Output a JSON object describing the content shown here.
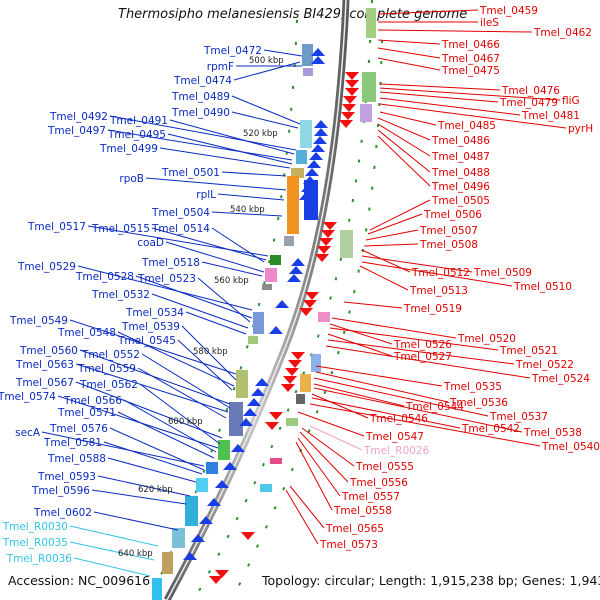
{
  "title": "Thermosipho melanesiensis BI429, complete genome",
  "footer": {
    "accession": "Accession: NC_009616",
    "topology": "Topology: circular; Length: 1,915,238 bp; Genes: 1,943"
  },
  "colors": {
    "forward_label": "#0a2bc0",
    "reverse_label": "#e00000",
    "rna_label": "#33c4e6",
    "rrna_label": "#f2a2c8",
    "forward_arrow": "#1a3ee6",
    "reverse_arrow": "#f01010",
    "backbone": "#8a8a8a",
    "tick": "#3aa03a"
  },
  "scale_labels": [
    "500 kbp",
    "520 kbp",
    "540 kbp",
    "560 kbp",
    "580 kbp",
    "600 kbp",
    "620 kbp",
    "640 kbp"
  ],
  "forward_genes": [
    "Tmel_0472",
    "rpmF",
    "Tmel_0474",
    "Tmel_0489",
    "Tmel_0490",
    "Tmel_0492",
    "Tmel_0491",
    "Tmel_0497",
    "Tmel_0495",
    "Tmel_0499",
    "Tmel_0501",
    "rpoB",
    "rplL",
    "Tmel_0504",
    "Tmel_0517",
    "Tmel_0515",
    "Tmel_0514",
    "coaD",
    "Tmel_0518",
    "Tmel_0529",
    "Tmel_0528",
    "Tmel_0523",
    "Tmel_0532",
    "Tmel_0534",
    "Tmel_0549",
    "Tmel_0539",
    "Tmel_0548",
    "Tmel_0545",
    "Tmel_0560",
    "Tmel_0552",
    "Tmel_0563",
    "Tmel_0559",
    "Tmel_0567",
    "Tmel_0562",
    "Tmel_0574",
    "Tmel_0566",
    "Tmel_0571",
    "secA",
    "Tmel_0576",
    "Tmel_0581",
    "Tmel_0588",
    "Tmel_0593",
    "Tmel_0596",
    "Tmel_0602"
  ],
  "rna_genes": [
    "Tmel_R0030",
    "Tmel_R0035",
    "Tmel_R0036"
  ],
  "reverse_genes": [
    "Tmel_0459",
    "ileS",
    "Tmel_0462",
    "Tmel_0466",
    "Tmel_0467",
    "Tmel_0475",
    "Tmel_0476",
    "fliG",
    "Tmel_0479",
    "Tmel_0481",
    "pyrH",
    "Tmel_0485",
    "Tmel_0486",
    "Tmel_0487",
    "Tmel_0488",
    "Tmel_0496",
    "Tmel_0505",
    "Tmel_0506",
    "Tmel_0507",
    "Tmel_0508",
    "Tmel_0512",
    "Tmel_0509",
    "Tmel_0510",
    "Tmel_0513",
    "Tmel_0519",
    "Tmel_0520",
    "Tmel_0526",
    "Tmel_0521",
    "Tmel_0527",
    "Tmel_0522",
    "Tmel_0524",
    "Tmel_0535",
    "Tmel_0536",
    "Tmel_0537",
    "Tmel_0544",
    "Tmel_0538",
    "Tmel_0546",
    "Tmel_0542",
    "Tmel_0540",
    "Tmel_0547",
    "Tmel_0555",
    "Tmel_0556",
    "Tmel_0557",
    "Tmel_0558",
    "Tmel_0565",
    "Tmel_0573"
  ],
  "rrna_genes": [
    "Tmel_R0026"
  ]
}
